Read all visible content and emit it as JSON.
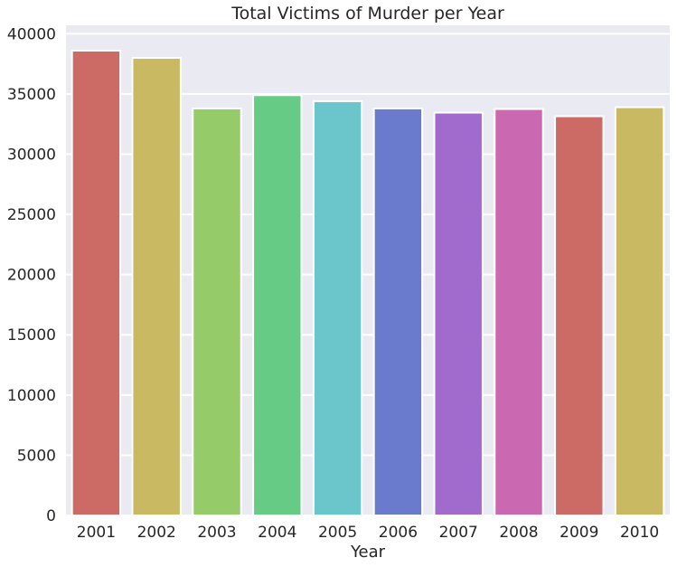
{
  "chart_data": {
    "type": "bar",
    "title": "Total Victims of Murder per Year",
    "xlabel": "Year",
    "ylabel": "",
    "categories": [
      "2001",
      "2002",
      "2003",
      "2004",
      "2005",
      "2006",
      "2007",
      "2008",
      "2009",
      "2010"
    ],
    "values": [
      38600,
      38000,
      33800,
      34900,
      34400,
      33800,
      33450,
      33750,
      33150,
      33900
    ],
    "ylim": [
      0,
      40700
    ],
    "yticks": [
      0,
      5000,
      10000,
      15000,
      20000,
      25000,
      30000,
      35000,
      40000
    ],
    "grid": true,
    "colors": {
      "background": "#eaeaf2",
      "grid": "#ffffff",
      "bars": [
        "#cc6b66",
        "#cab963",
        "#95cc69",
        "#66cb84",
        "#6ac6cb",
        "#6a7bcd",
        "#a16acd",
        "#ca69b2",
        "#cc6b66",
        "#cab963"
      ]
    }
  }
}
